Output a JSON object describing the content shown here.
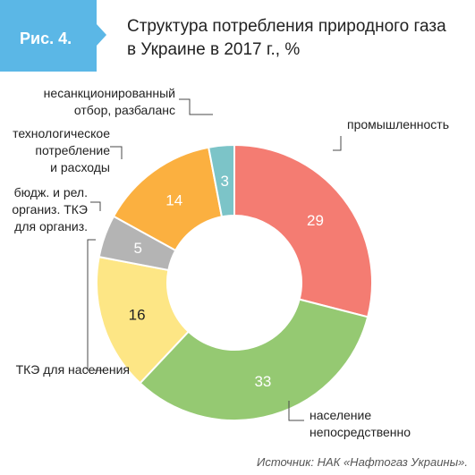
{
  "figure": {
    "badge": "Рис. 4.",
    "title_line1": "Структура потребления природного газа",
    "title_line2": "в Украине в 2017 г., %",
    "source": "Источник: НАК «Нафтогаз Украины»."
  },
  "colors": {
    "badge": "#5bb7e6",
    "leader": "#4a4a4a"
  },
  "chart_data": {
    "type": "pie",
    "variant": "donut",
    "title": "Структура потребления природного газа в Украине в 2017 г., %",
    "unit": "%",
    "slices": [
      {
        "label": "промышленность",
        "label_lines": [
          "промышленность"
        ],
        "value": 29,
        "value_text": "29",
        "color": "#f47c72",
        "value_color": "#ffffff"
      },
      {
        "label": "население непосредственно",
        "label_lines": [
          "население",
          "непосредственно"
        ],
        "value": 33,
        "value_text": "33",
        "color": "#95c972",
        "value_color": "#ffffff"
      },
      {
        "label": "ТКЭ для населения",
        "label_lines": [
          "ТКЭ для населения"
        ],
        "value": 16,
        "value_text": "16",
        "color": "#fde685",
        "value_color": "#222222"
      },
      {
        "label": "бюдж. и рел. организ. ТКЭ для организ.",
        "label_lines": [
          "бюдж. и рел.",
          "организ. ТКЭ",
          "для организ."
        ],
        "value": 5,
        "value_text": "5",
        "color": "#b4b4b4",
        "value_color": "#ffffff"
      },
      {
        "label": "технологическое потребление и расходы",
        "label_lines": [
          "технологическое",
          "потребление",
          "и расходы"
        ],
        "value": 14,
        "value_text": "14",
        "color": "#fbb040",
        "value_color": "#ffffff"
      },
      {
        "label": "несанкционированный отбор, разбаланс",
        "label_lines": [
          "несанкционированный",
          "отбор, разбаланс"
        ],
        "value": 3,
        "value_text": "3",
        "color": "#7cc4c8",
        "value_color": "#ffffff"
      }
    ],
    "legend": "none"
  }
}
